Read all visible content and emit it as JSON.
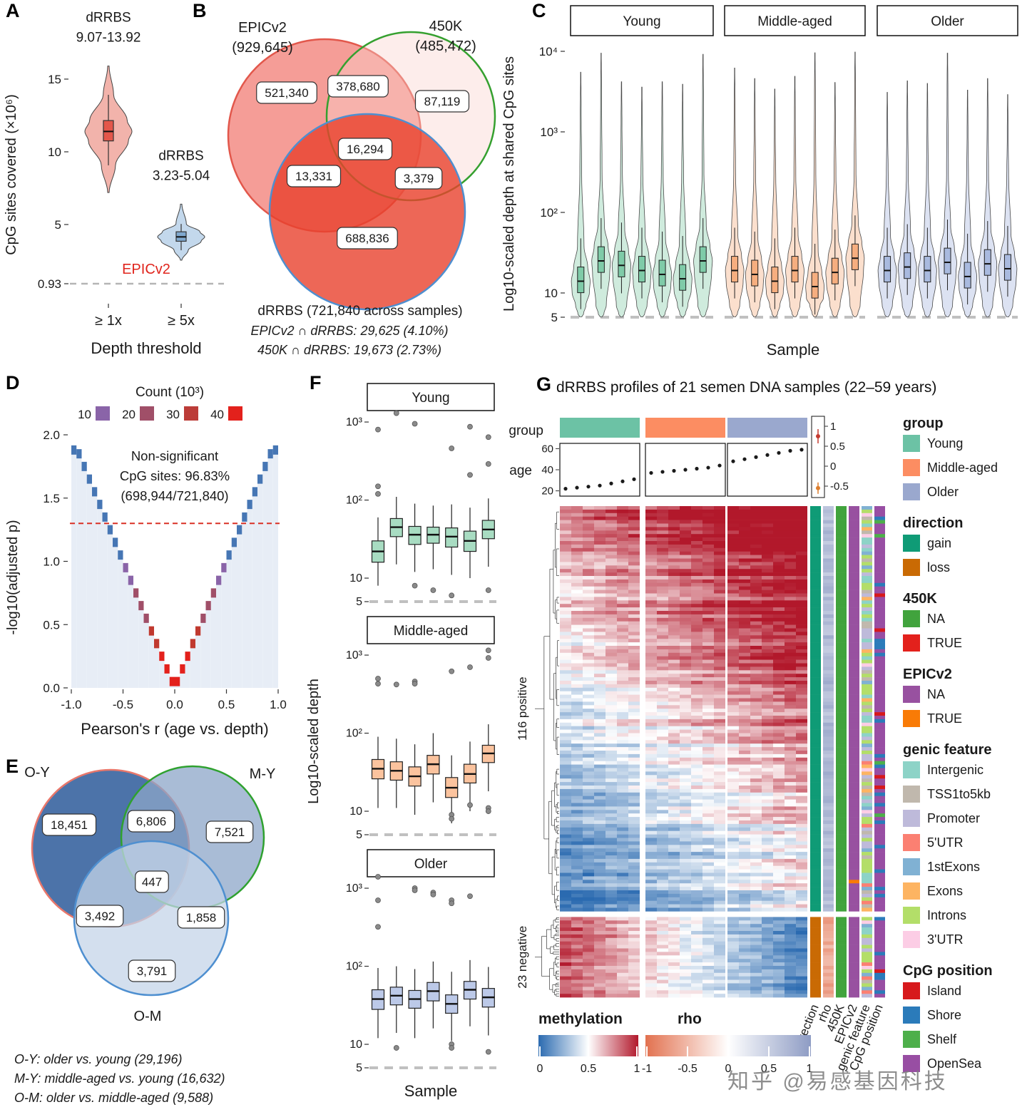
{
  "watermark": "知乎 @易感基因科技",
  "chart_data": [
    {
      "panel": "A",
      "type": "violin",
      "xlabel": "Depth threshold",
      "ylabel": "CpG sites covered (×10⁶)",
      "categories": [
        "≥ 1x",
        "≥ 5x"
      ],
      "yticks": [
        {
          "v": 15,
          "label": "15"
        },
        {
          "v": 10,
          "label": "10"
        },
        {
          "v": 5,
          "label": "5"
        },
        {
          "v": 0.93,
          "label": "0.93"
        }
      ],
      "violins": [
        {
          "category": "≥ 1x",
          "label": "dRRBS",
          "range": "9.07-13.92",
          "median": 11.4,
          "q1": 10.75,
          "q3": 12.15,
          "lo": 9.07,
          "hi": 13.92,
          "tail_lo": 7.2,
          "tail_hi": 15.9,
          "fill": "#F2B3AB",
          "stroke": "#444444",
          "box_fill": "#E4564A"
        },
        {
          "category": "≥ 5x",
          "label": "dRRBS",
          "range": "3.23-5.04",
          "median": 4.15,
          "q1": 3.85,
          "q3": 4.5,
          "lo": 3.23,
          "hi": 5.04,
          "tail_lo": 2.55,
          "tail_hi": 6.4,
          "fill": "#C3D8EC",
          "stroke": "#444444",
          "box_fill": "#7FA8CE"
        }
      ],
      "baseline": {
        "value": 0.93,
        "label": "EPICv2",
        "label_color": "#E0241C",
        "line_color": "#B5B5B5"
      }
    },
    {
      "panel": "B",
      "type": "venn",
      "sets": [
        {
          "name": "EPICv2",
          "size_label": "(929,645)",
          "fill": "rgba(240,105,95,0.65)",
          "stroke": "#E2574B"
        },
        {
          "name": "450K",
          "size_label": "(485,472)",
          "fill": "rgba(250,210,205,0.40)",
          "stroke": "#35A02F"
        },
        {
          "name": "dRRBS",
          "size_label": "(721,840 across samples)",
          "fill": "rgba(232,65,45,0.80)",
          "stroke": "#4E8FD0"
        }
      ],
      "bottom_label": "dRRBS (721,840 across samples)",
      "regions": [
        "521,340",
        "378,680",
        "87,119",
        "16,294",
        "13,331",
        "3,379",
        "688,836"
      ],
      "footnotes": [
        "EPICv2 ∩ dRRBS: 29,625 (4.10%)",
        "450K ∩ dRRBS: 19,673 (2.73%)"
      ]
    },
    {
      "panel": "C",
      "type": "violin-grid",
      "ylabel": "Log10-scaled depth at shared CpG sites",
      "xlabel": "Sample",
      "yticks": [
        {
          "v": 10000,
          "label": "10⁴"
        },
        {
          "v": 1000,
          "label": "10³"
        },
        {
          "v": 100,
          "label": "10²"
        },
        {
          "v": 10,
          "label": "10"
        },
        {
          "v": 5,
          "label": "5"
        }
      ],
      "baseline": 5,
      "facets": [
        {
          "label": "Young",
          "fill": "#CFEBDD",
          "box_fill": "#7FCBA8",
          "medians": [
            14,
            25,
            22,
            19,
            17,
            15,
            25
          ],
          "tails": [
            5500,
            9500,
            4200,
            3600,
            4200,
            3900,
            9200
          ]
        },
        {
          "label": "Middle-aged",
          "fill": "#FBDFCD",
          "box_fill": "#F6AE7F",
          "medians": [
            19,
            17,
            14,
            19,
            12,
            18,
            27
          ],
          "tails": [
            6200,
            4600,
            3400,
            4900,
            9600,
            4100,
            9800
          ]
        },
        {
          "label": "Older",
          "fill": "#DCE2F2",
          "box_fill": "#A9BADF",
          "medians": [
            19,
            21,
            19,
            24,
            16,
            23,
            20
          ],
          "tails": [
            3100,
            4300,
            4000,
            9500,
            3300,
            4600,
            2900
          ]
        }
      ]
    },
    {
      "panel": "D",
      "type": "binned-histogram",
      "legend": {
        "title": "Count (10³)",
        "items": [
          {
            "label": "10",
            "color": "#8A64A8"
          },
          {
            "label": "20",
            "color": "#A04F68"
          },
          {
            "label": "30",
            "color": "#BC3C38"
          },
          {
            "label": "40",
            "color": "#E3211C"
          }
        ]
      },
      "annotation": [
        "Non-significant",
        "CpG sites: 96.83%",
        "(698,944/721,840)"
      ],
      "threshold_line": {
        "y": 1.3,
        "color": "#D93025"
      },
      "ylabel": "-log10(adjusted p)",
      "xl abel_note": "",
      "xlabel": "Pearson's r (age vs. depth)",
      "yticks": [
        {
          "v": 2.0,
          "label": "2.0"
        },
        {
          "v": 1.5,
          "label": "1.5"
        },
        {
          "v": 1.0,
          "label": "1.0"
        },
        {
          "v": 0.5,
          "label": "0.5"
        },
        {
          "v": 0.0,
          "label": "0.0"
        }
      ],
      "xticks": [
        {
          "v": -1.0,
          "label": "-1.0"
        },
        {
          "v": -0.5,
          "label": "-0.5"
        },
        {
          "v": 0.0,
          "label": "0.0"
        },
        {
          "v": 0.5,
          "label": "0.5"
        },
        {
          "v": 1.0,
          "label": "1.0"
        }
      ],
      "v_shape": {
        "slope": 2.0,
        "bin_width": 0.05,
        "x_min": -0.975,
        "x_max": 0.975,
        "count_peak": 43,
        "count_sigma": 0.4
      },
      "fill_color": "#E7EDF6",
      "low_color": "#4676B4"
    },
    {
      "panel": "E",
      "type": "venn",
      "sets": [
        {
          "name": "O-Y",
          "size_label": "",
          "fill": "rgba(56,100,160,0.90)",
          "stroke": "#E8776B"
        },
        {
          "name": "M-Y",
          "size_label": "",
          "fill": "rgba(140,165,200,0.75)",
          "stroke": "#2FA12F"
        },
        {
          "name": "O-M",
          "size_label": "",
          "fill": "rgba(196,212,232,0.75)",
          "stroke": "#4E8FD0"
        }
      ],
      "bottom_label": "",
      "regions": [
        "18,451",
        "6,806",
        "7,521",
        "447",
        "3,492",
        "1,858",
        "3,791"
      ],
      "footnotes": [
        "O-Y: older vs. young (29,196)",
        "M-Y: middle-aged vs. young (16,632)",
        "O-M: older vs. middle-aged (9,588)"
      ]
    },
    {
      "panel": "F",
      "type": "boxplot-grid",
      "ylabel": "Log10-scaled depth",
      "xlabel": "Sample",
      "yticks": [
        {
          "v": 1000,
          "label": "10³"
        },
        {
          "v": 100,
          "label": "10²"
        },
        {
          "v": 10,
          "label": "10"
        },
        {
          "v": 5,
          "label": "5"
        }
      ],
      "baseline": 5,
      "facets": [
        {
          "label": "Young",
          "box_fill": "#A8DCC2",
          "boxes": [
            {
              "med": 22,
              "q1": 16,
              "q3": 30,
              "lo": 8,
              "hi": 60,
              "out": [
                800,
                150,
                120
              ]
            },
            {
              "med": 45,
              "q1": 34,
              "q3": 58,
              "lo": 15,
              "hi": 110,
              "out": [
                1300
              ]
            },
            {
              "med": 36,
              "q1": 27,
              "q3": 46,
              "lo": 12,
              "hi": 90,
              "out": [
                950,
                8
              ]
            },
            {
              "med": 36,
              "q1": 28,
              "q3": 45,
              "lo": 13,
              "hi": 85,
              "out": [
                7
              ]
            },
            {
              "med": 34,
              "q1": 25,
              "q3": 44,
              "lo": 11,
              "hi": 88,
              "out": [
                460,
                6
              ]
            },
            {
              "med": 30,
              "q1": 22,
              "q3": 40,
              "lo": 10,
              "hi": 80,
              "out": [
                870,
                210
              ]
            },
            {
              "med": 42,
              "q1": 32,
              "q3": 55,
              "lo": 14,
              "hi": 105,
              "out": [
                640,
                290,
                7
              ]
            }
          ]
        },
        {
          "label": "Middle-aged",
          "box_fill": "#FBC39E",
          "boxes": [
            {
              "med": 35,
              "q1": 26,
              "q3": 46,
              "lo": 11,
              "hi": 90,
              "out": [
                500,
                430
              ]
            },
            {
              "med": 33,
              "q1": 25,
              "q3": 43,
              "lo": 11,
              "hi": 85,
              "out": [
                420
              ]
            },
            {
              "med": 28,
              "q1": 21,
              "q3": 37,
              "lo": 9,
              "hi": 72,
              "out": [
                460,
                430
              ]
            },
            {
              "med": 40,
              "q1": 30,
              "q3": 52,
              "lo": 13,
              "hi": 100,
              "out": []
            },
            {
              "med": 20,
              "q1": 15,
              "q3": 27,
              "lo": 7,
              "hi": 52,
              "out": [
                620,
                9,
                8
              ]
            },
            {
              "med": 30,
              "q1": 23,
              "q3": 40,
              "lo": 10,
              "hi": 78,
              "out": [
                700,
                12
              ]
            },
            {
              "med": 55,
              "q1": 42,
              "q3": 70,
              "lo": 18,
              "hi": 130,
              "out": [
                1150,
                920,
                11,
                10
              ]
            }
          ]
        },
        {
          "label": "Older",
          "box_fill": "#BCC9E8",
          "boxes": [
            {
              "med": 38,
              "q1": 28,
              "q3": 50,
              "lo": 12,
              "hi": 95,
              "out": [
                2000,
                700,
                320
              ]
            },
            {
              "med": 42,
              "q1": 32,
              "q3": 54,
              "lo": 14,
              "hi": 100,
              "out": [
                9
              ]
            },
            {
              "med": 38,
              "q1": 29,
              "q3": 49,
              "lo": 12,
              "hi": 92,
              "out": [
                1000,
                940
              ]
            },
            {
              "med": 48,
              "q1": 36,
              "q3": 62,
              "lo": 16,
              "hi": 115,
              "out": [
                880,
                830
              ]
            },
            {
              "med": 33,
              "q1": 25,
              "q3": 43,
              "lo": 11,
              "hi": 85,
              "out": [
                700,
                640,
                10,
                9
              ]
            },
            {
              "med": 50,
              "q1": 38,
              "q3": 64,
              "lo": 17,
              "hi": 120,
              "out": [
                790
              ]
            },
            {
              "med": 40,
              "q1": 30,
              "q3": 52,
              "lo": 13,
              "hi": 98,
              "out": [
                8
              ]
            }
          ]
        }
      ]
    },
    {
      "panel": "G",
      "type": "heatmap",
      "title": "dRRBS profiles of 21 semen DNA samples (22–59 years)",
      "top": {
        "group_label": "group",
        "age_label": "age",
        "age_ticks": [
          60,
          40,
          20
        ],
        "rho_axis_ticks": [
          "1",
          "0.5",
          "0",
          "-0.5"
        ],
        "ages": [
          [
            22,
            23,
            24,
            25,
            27,
            29,
            31
          ],
          [
            37,
            38,
            39,
            40,
            41,
            42,
            44
          ],
          [
            48,
            50,
            52,
            54,
            56,
            58,
            59
          ]
        ]
      },
      "groups": [
        {
          "label": "Young",
          "color": "#6CC2A5"
        },
        {
          "label": "Middle-aged",
          "color": "#FC8D62"
        },
        {
          "label": "Older",
          "color": "#9AA8CE"
        }
      ],
      "rows": {
        "positive": {
          "label": "116 positive",
          "count": 116
        },
        "negative": {
          "label": "23 negative",
          "count": 23
        }
      },
      "colormap": {
        "methylation": {
          "label": "methylation",
          "ticks": [
            "0",
            "0.5",
            "1"
          ],
          "low": "#2A6AB0",
          "mid": "#FFFFFF",
          "high": "#B2182B"
        },
        "rho": {
          "label": "rho",
          "ticks": [
            "-1",
            "-0.5",
            "0",
            "0.5",
            "1"
          ],
          "low": "#E2714F",
          "mid": "#FFFFFF",
          "high": "#8E9CC4"
        }
      },
      "annotation_columns": [
        "direction",
        "rho",
        "450K",
        "EPICv2",
        "genic feature",
        "CpG position"
      ],
      "legends": [
        {
          "title": "group",
          "items": [
            {
              "label": "Young",
              "color": "#6CC2A5"
            },
            {
              "label": "Middle-aged",
              "color": "#FC8D62"
            },
            {
              "label": "Older",
              "color": "#9AA8CE"
            }
          ]
        },
        {
          "title": "direction",
          "items": [
            {
              "label": "gain",
              "color": "#0F9B76"
            },
            {
              "label": "loss",
              "color": "#C96A04"
            }
          ]
        },
        {
          "title": "450K",
          "items": [
            {
              "label": "NA",
              "color": "#41A33D"
            },
            {
              "label": "TRUE",
              "color": "#E3211C"
            }
          ]
        },
        {
          "title": "EPICv2",
          "items": [
            {
              "label": "NA",
              "color": "#9851A0"
            },
            {
              "label": "TRUE",
              "color": "#F97B06"
            }
          ]
        },
        {
          "title": "genic feature",
          "items": [
            {
              "label": "Intergenic",
              "color": "#8DD3C7"
            },
            {
              "label": "TSS1to5kb",
              "color": "#C0B8AD"
            },
            {
              "label": "Promoter",
              "color": "#BEBADA"
            },
            {
              "label": "5'UTR",
              "color": "#FB8072"
            },
            {
              "label": "1stExons",
              "color": "#80B1D3"
            },
            {
              "label": "Exons",
              "color": "#FDB462"
            },
            {
              "label": "Introns",
              "color": "#B3DE69"
            },
            {
              "label": "3'UTR",
              "color": "#FCCDE5"
            }
          ]
        },
        {
          "title": "CpG position",
          "items": [
            {
              "label": "Island",
              "color": "#D7191C"
            },
            {
              "label": "Shore",
              "color": "#2B7BBA"
            },
            {
              "label": "Shelf",
              "color": "#4DAF4A"
            },
            {
              "label": "OpenSea",
              "color": "#984EA3"
            }
          ]
        }
      ]
    }
  ]
}
